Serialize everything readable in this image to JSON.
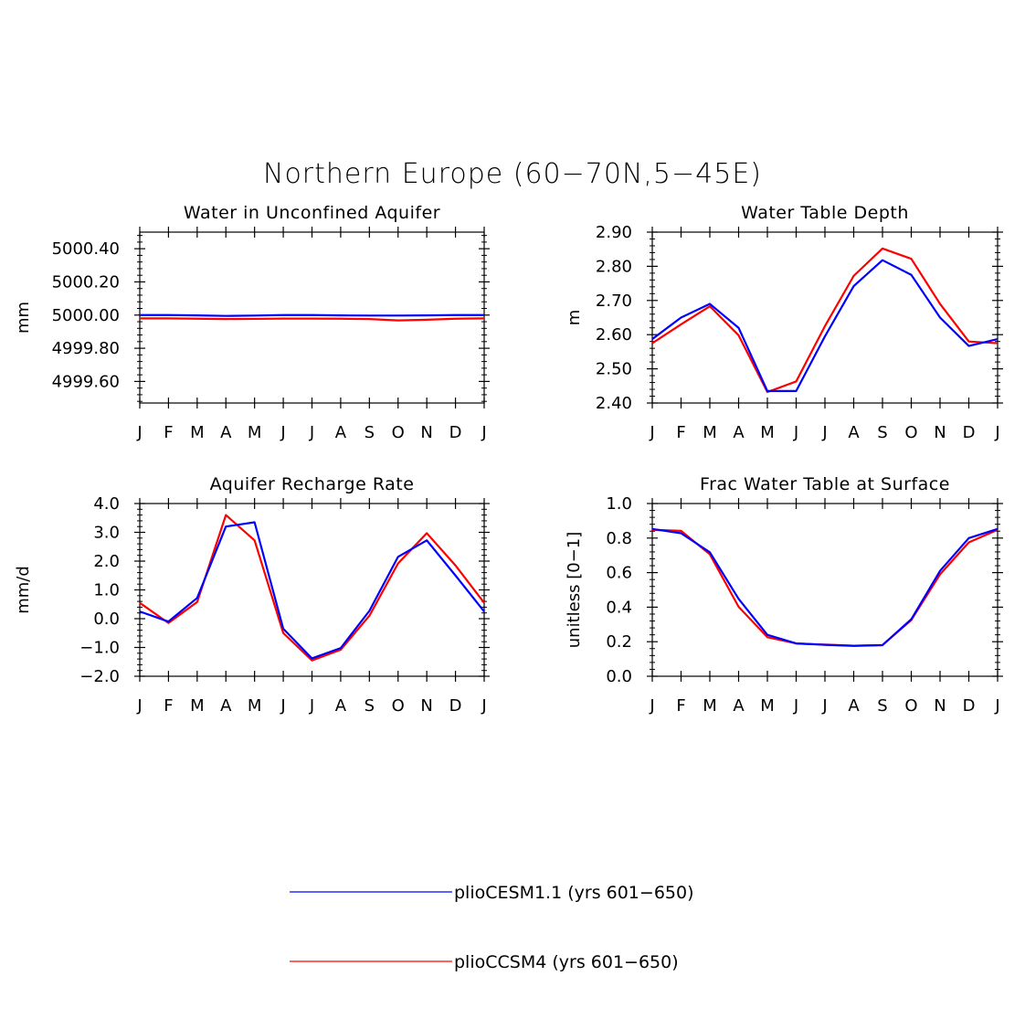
{
  "figure": {
    "title": "Northern Europe (60−70N,5−45E)"
  },
  "months": [
    "J",
    "F",
    "M",
    "A",
    "M",
    "J",
    "J",
    "A",
    "S",
    "O",
    "N",
    "D",
    "J"
  ],
  "series_styles": [
    {
      "name": "plioCESM1.1 (yrs 601−650)",
      "color": "#0000ff"
    },
    {
      "name": "plioCCSM4 (yrs 601−650)",
      "color": "#ff0000"
    }
  ],
  "legend": {
    "entries": [
      "plioCESM1.1 (yrs 601−650)",
      "plioCCSM4 (yrs 601−650)"
    ]
  },
  "chart_data": [
    {
      "type": "line",
      "title": "Water in Unconfined Aquifer",
      "ylabel": "mm",
      "xlabel": "",
      "categories": [
        "J",
        "F",
        "M",
        "A",
        "M",
        "J",
        "J",
        "A",
        "S",
        "O",
        "N",
        "D",
        "J"
      ],
      "ylim": [
        4999.47,
        5000.5
      ],
      "yticks": [
        4999.6,
        4999.8,
        5000.0,
        5000.2,
        5000.4
      ],
      "ytick_labels": [
        "4999.60",
        "4999.80",
        "5000.00",
        "5000.20",
        "5000.40"
      ],
      "grid": false,
      "series": [
        {
          "name": "plioCESM1.1 (yrs 601−650)",
          "color": "#0000ff",
          "values": [
            5000.0,
            5000.0,
            4999.998,
            4999.995,
            4999.997,
            5000.0,
            5000.0,
            4999.998,
            4999.997,
            4999.997,
            4999.998,
            5000.0,
            5000.0
          ]
        },
        {
          "name": "plioCCSM4 (yrs 601−650)",
          "color": "#ff0000",
          "values": [
            4999.98,
            4999.98,
            4999.978,
            4999.976,
            4999.977,
            4999.979,
            4999.979,
            4999.978,
            4999.976,
            4999.968,
            4999.972,
            4999.978,
            4999.98
          ]
        }
      ]
    },
    {
      "type": "line",
      "title": "Water Table Depth",
      "ylabel": "m",
      "xlabel": "",
      "categories": [
        "J",
        "F",
        "M",
        "A",
        "M",
        "J",
        "J",
        "A",
        "S",
        "O",
        "N",
        "D",
        "J"
      ],
      "ylim": [
        2.4,
        2.9
      ],
      "yticks": [
        2.4,
        2.5,
        2.6,
        2.7,
        2.8,
        2.9
      ],
      "ytick_labels": [
        "2.40",
        "2.50",
        "2.60",
        "2.70",
        "2.80",
        "2.90"
      ],
      "grid": false,
      "series": [
        {
          "name": "plioCESM1.1 (yrs 601−650)",
          "color": "#0000ff",
          "values": [
            2.587,
            2.65,
            2.69,
            2.62,
            2.435,
            2.435,
            2.595,
            2.742,
            2.818,
            2.775,
            2.65,
            2.567,
            2.587
          ]
        },
        {
          "name": "plioCCSM4 (yrs 601−650)",
          "color": "#ff0000",
          "values": [
            2.575,
            2.63,
            2.683,
            2.598,
            2.432,
            2.463,
            2.625,
            2.772,
            2.852,
            2.822,
            2.69,
            2.58,
            2.575
          ]
        }
      ]
    },
    {
      "type": "line",
      "title": "Aquifer Recharge Rate",
      "ylabel": "mm/d",
      "xlabel": "",
      "categories": [
        "J",
        "F",
        "M",
        "A",
        "M",
        "J",
        "J",
        "A",
        "S",
        "O",
        "N",
        "D",
        "J"
      ],
      "ylim": [
        -2.0,
        4.0
      ],
      "yticks": [
        -2.0,
        -1.0,
        0.0,
        1.0,
        2.0,
        3.0,
        4.0
      ],
      "ytick_labels": [
        "−2.0",
        "−1.0",
        "0.0",
        "1.0",
        "2.0",
        "3.0",
        "4.0"
      ],
      "grid": false,
      "series": [
        {
          "name": "plioCESM1.1 (yrs 601−650)",
          "color": "#0000ff",
          "values": [
            0.25,
            -0.1,
            0.72,
            3.2,
            3.35,
            -0.35,
            -1.38,
            -1.02,
            0.27,
            2.15,
            2.72,
            1.5,
            0.25
          ]
        },
        {
          "name": "plioCCSM4 (yrs 601−650)",
          "color": "#ff0000",
          "values": [
            0.55,
            -0.15,
            0.58,
            3.6,
            2.72,
            -0.5,
            -1.45,
            -1.08,
            0.1,
            1.92,
            2.97,
            1.85,
            0.55
          ]
        }
      ]
    },
    {
      "type": "line",
      "title": "Frac Water Table at Surface",
      "ylabel": "unitless [0−1]",
      "xlabel": "",
      "categories": [
        "J",
        "F",
        "M",
        "A",
        "M",
        "J",
        "J",
        "A",
        "S",
        "O",
        "N",
        "D",
        "J"
      ],
      "ylim": [
        0.0,
        1.0
      ],
      "yticks": [
        0.0,
        0.2,
        0.4,
        0.6,
        0.8,
        1.0
      ],
      "ytick_labels": [
        "0.0",
        "0.2",
        "0.4",
        "0.6",
        "0.8",
        "1.0"
      ],
      "grid": false,
      "series": [
        {
          "name": "plioCESM1.1 (yrs 601−650)",
          "color": "#0000ff",
          "values": [
            0.853,
            0.828,
            0.718,
            0.448,
            0.24,
            0.19,
            0.182,
            0.176,
            0.18,
            0.33,
            0.61,
            0.8,
            0.853
          ]
        },
        {
          "name": "plioCCSM4 (yrs 601−650)",
          "color": "#ff0000",
          "values": [
            0.848,
            0.842,
            0.706,
            0.402,
            0.226,
            0.19,
            0.183,
            0.177,
            0.181,
            0.325,
            0.59,
            0.775,
            0.848
          ]
        }
      ]
    }
  ]
}
